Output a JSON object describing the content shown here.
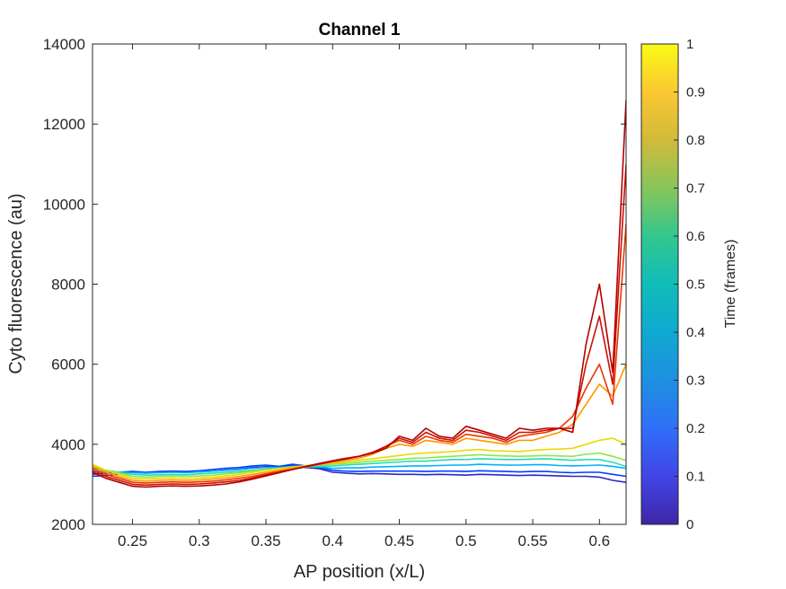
{
  "chart_data": {
    "type": "line",
    "title": "Channel 1",
    "xlabel": "AP position (x/L)",
    "ylabel": "Cyto fluorescence (au)",
    "xlim": [
      0.22,
      0.62
    ],
    "ylim": [
      2000,
      14000
    ],
    "xticks": [
      0.25,
      0.3,
      0.35,
      0.4,
      0.45,
      0.5,
      0.55,
      0.6
    ],
    "xtick_labels": [
      "0.25",
      "0.3",
      "0.35",
      "0.4",
      "0.45",
      "0.5",
      "0.55",
      "0.6"
    ],
    "yticks": [
      2000,
      4000,
      6000,
      8000,
      10000,
      12000,
      14000
    ],
    "ytick_labels": [
      "2000",
      "4000",
      "6000",
      "8000",
      "10000",
      "12000",
      "14000"
    ],
    "grid": false,
    "colormap": "jet",
    "colorbar": {
      "label": "Time (frames)",
      "range": [
        0,
        1
      ],
      "ticks": [
        0,
        0.1,
        0.2,
        0.3,
        0.4,
        0.5,
        0.6,
        0.7,
        0.8,
        0.9,
        1
      ],
      "tick_labels": [
        "0",
        "0.1",
        "0.2",
        "0.3",
        "0.4",
        "0.5",
        "0.6",
        "0.7",
        "0.8",
        "0.9",
        "1"
      ]
    },
    "x": [
      0.22,
      0.23,
      0.24,
      0.25,
      0.26,
      0.27,
      0.28,
      0.29,
      0.3,
      0.31,
      0.32,
      0.33,
      0.34,
      0.35,
      0.36,
      0.37,
      0.38,
      0.39,
      0.4,
      0.41,
      0.42,
      0.43,
      0.44,
      0.45,
      0.46,
      0.47,
      0.48,
      0.49,
      0.5,
      0.51,
      0.52,
      0.53,
      0.54,
      0.55,
      0.56,
      0.57,
      0.58,
      0.59,
      0.6,
      0.61,
      0.62
    ],
    "series": [
      {
        "time": 0.05,
        "values": [
          3200,
          3220,
          3260,
          3300,
          3280,
          3300,
          3310,
          3300,
          3310,
          3330,
          3360,
          3380,
          3420,
          3440,
          3430,
          3470,
          3420,
          3390,
          3300,
          3280,
          3260,
          3270,
          3260,
          3250,
          3250,
          3240,
          3250,
          3240,
          3230,
          3250,
          3240,
          3230,
          3220,
          3230,
          3220,
          3210,
          3200,
          3200,
          3180,
          3100,
          3050
        ]
      },
      {
        "time": 0.18,
        "values": [
          3250,
          3280,
          3300,
          3320,
          3300,
          3320,
          3330,
          3320,
          3340,
          3370,
          3400,
          3420,
          3460,
          3480,
          3450,
          3500,
          3460,
          3420,
          3350,
          3330,
          3320,
          3330,
          3330,
          3330,
          3330,
          3320,
          3330,
          3330,
          3320,
          3340,
          3330,
          3320,
          3310,
          3320,
          3320,
          3300,
          3290,
          3300,
          3300,
          3250,
          3200
        ]
      },
      {
        "time": 0.32,
        "values": [
          3300,
          3320,
          3300,
          3290,
          3280,
          3290,
          3300,
          3290,
          3310,
          3330,
          3350,
          3370,
          3400,
          3420,
          3420,
          3450,
          3440,
          3430,
          3400,
          3410,
          3410,
          3430,
          3440,
          3450,
          3460,
          3460,
          3470,
          3480,
          3480,
          3500,
          3490,
          3480,
          3480,
          3490,
          3490,
          3470,
          3460,
          3470,
          3480,
          3450,
          3400
        ]
      },
      {
        "time": 0.48,
        "values": [
          3400,
          3350,
          3300,
          3250,
          3230,
          3240,
          3250,
          3240,
          3260,
          3280,
          3300,
          3320,
          3350,
          3380,
          3400,
          3420,
          3430,
          3450,
          3460,
          3480,
          3500,
          3520,
          3540,
          3560,
          3580,
          3580,
          3600,
          3620,
          3620,
          3640,
          3630,
          3620,
          3620,
          3630,
          3640,
          3620,
          3600,
          3620,
          3620,
          3550,
          3450
        ]
      },
      {
        "time": 0.62,
        "values": [
          3450,
          3350,
          3280,
          3200,
          3180,
          3200,
          3210,
          3200,
          3210,
          3230,
          3260,
          3290,
          3330,
          3370,
          3400,
          3430,
          3460,
          3480,
          3500,
          3520,
          3550,
          3580,
          3600,
          3620,
          3650,
          3660,
          3680,
          3700,
          3720,
          3740,
          3720,
          3710,
          3700,
          3710,
          3720,
          3710,
          3700,
          3750,
          3780,
          3700,
          3600
        ]
      },
      {
        "time": 0.72,
        "values": [
          3500,
          3350,
          3250,
          3150,
          3130,
          3150,
          3160,
          3150,
          3160,
          3180,
          3210,
          3250,
          3300,
          3350,
          3390,
          3430,
          3470,
          3500,
          3530,
          3560,
          3600,
          3640,
          3680,
          3720,
          3760,
          3780,
          3800,
          3820,
          3850,
          3870,
          3840,
          3830,
          3820,
          3850,
          3870,
          3880,
          3900,
          4000,
          4100,
          4150,
          4000
        ]
      },
      {
        "time": 0.82,
        "values": [
          3450,
          3300,
          3200,
          3100,
          3080,
          3100,
          3110,
          3100,
          3110,
          3130,
          3160,
          3200,
          3250,
          3300,
          3350,
          3400,
          3450,
          3500,
          3550,
          3600,
          3650,
          3750,
          3900,
          4000,
          3950,
          4100,
          4050,
          4000,
          4150,
          4100,
          4050,
          4000,
          4100,
          4100,
          4200,
          4300,
          4500,
          5000,
          5500,
          5200,
          6000
        ]
      },
      {
        "time": 0.9,
        "values": [
          3400,
          3250,
          3150,
          3050,
          3030,
          3050,
          3060,
          3050,
          3060,
          3080,
          3110,
          3150,
          3200,
          3260,
          3320,
          3380,
          3440,
          3500,
          3570,
          3630,
          3700,
          3800,
          3950,
          4100,
          4000,
          4200,
          4100,
          4050,
          4250,
          4200,
          4150,
          4050,
          4200,
          4250,
          4300,
          4400,
          4700,
          5400,
          6000,
          5000,
          9500
        ]
      },
      {
        "time": 0.96,
        "values": [
          3350,
          3200,
          3100,
          3000,
          2980,
          3000,
          3010,
          3000,
          3010,
          3030,
          3060,
          3100,
          3160,
          3230,
          3300,
          3370,
          3440,
          3510,
          3580,
          3640,
          3700,
          3800,
          3950,
          4150,
          4050,
          4300,
          4150,
          4100,
          4350,
          4300,
          4200,
          4100,
          4300,
          4300,
          4350,
          4400,
          4400,
          6000,
          7200,
          5500,
          11000
        ]
      },
      {
        "time": 1.0,
        "values": [
          3300,
          3150,
          3050,
          2950,
          2930,
          2950,
          2960,
          2950,
          2960,
          2980,
          3010,
          3060,
          3130,
          3210,
          3290,
          3370,
          3450,
          3520,
          3590,
          3650,
          3700,
          3780,
          3900,
          4200,
          4100,
          4400,
          4200,
          4150,
          4450,
          4350,
          4250,
          4150,
          4400,
          4350,
          4400,
          4400,
          4300,
          6500,
          8000,
          5800,
          12600
        ]
      }
    ]
  }
}
